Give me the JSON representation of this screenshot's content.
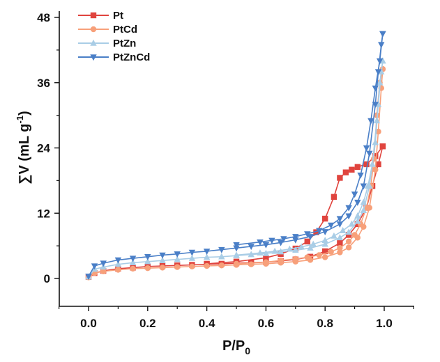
{
  "chart_data": {
    "type": "line",
    "title": "",
    "xlabel": "P/P",
    "xlabel_subscript": "0",
    "ylabel": "∑V (mL g",
    "ylabel_superscript": "-1",
    "ylabel_close": ")",
    "xlim": [
      -0.1,
      1.1
    ],
    "ylim": [
      -5,
      49
    ],
    "xticks": [
      0.0,
      0.2,
      0.4,
      0.6,
      0.8,
      1.0
    ],
    "xtick_labels": [
      "0.0",
      "0.2",
      "0.4",
      "0.6",
      "0.8",
      "1.0"
    ],
    "yticks": [
      0,
      12,
      24,
      36,
      48
    ],
    "ytick_labels": [
      "0",
      "12",
      "24",
      "36",
      "48"
    ],
    "grid": false,
    "legend_position": "top-left",
    "series": [
      {
        "name": "Pt",
        "color": "#e0443e",
        "marker": "square",
        "adsorption": {
          "x": [
            0.0,
            0.02,
            0.05,
            0.1,
            0.15,
            0.2,
            0.25,
            0.3,
            0.35,
            0.4,
            0.45,
            0.5,
            0.55,
            0.6,
            0.65,
            0.7,
            0.75,
            0.8,
            0.85,
            0.88,
            0.91,
            0.94,
            0.96,
            0.98,
            0.995
          ],
          "y": [
            0.3,
            1.0,
            1.4,
            1.8,
            2.0,
            2.2,
            2.3,
            2.4,
            2.5,
            2.6,
            2.7,
            2.8,
            2.9,
            3.0,
            3.2,
            3.5,
            4.0,
            5.0,
            6.5,
            8.0,
            10.0,
            13.0,
            17.0,
            21.0,
            24.3
          ]
        },
        "desorption": {
          "x": [
            0.995,
            0.97,
            0.94,
            0.91,
            0.89,
            0.87,
            0.85,
            0.83,
            0.8,
            0.77,
            0.74,
            0.7,
            0.65,
            0.6,
            0.5,
            0.4
          ],
          "y": [
            24.3,
            22.5,
            21.0,
            20.5,
            20.0,
            19.5,
            18.5,
            15.0,
            11.0,
            8.5,
            6.8,
            5.5,
            4.5,
            3.8,
            3.1,
            2.7
          ]
        }
      },
      {
        "name": "PtCd",
        "color": "#f7a07a",
        "marker": "circle",
        "adsorption": {
          "x": [
            0.0,
            0.02,
            0.05,
            0.1,
            0.15,
            0.2,
            0.25,
            0.3,
            0.35,
            0.4,
            0.45,
            0.5,
            0.55,
            0.6,
            0.65,
            0.7,
            0.75,
            0.8,
            0.85,
            0.88,
            0.91,
            0.93,
            0.95,
            0.97,
            0.98,
            0.99,
            0.995
          ],
          "y": [
            0.2,
            1.0,
            1.3,
            1.6,
            1.8,
            1.9,
            2.0,
            2.1,
            2.2,
            2.3,
            2.4,
            2.5,
            2.6,
            2.7,
            2.9,
            3.1,
            3.4,
            3.9,
            4.8,
            5.7,
            7.5,
            9.5,
            13.0,
            20.0,
            27.0,
            35.0,
            38.5
          ]
        },
        "desorption": {
          "x": [
            0.995,
            0.985,
            0.975,
            0.965,
            0.955,
            0.94,
            0.92,
            0.9,
            0.88,
            0.85,
            0.82,
            0.78,
            0.74,
            0.7,
            0.65,
            0.6,
            0.5
          ],
          "y": [
            38.5,
            36.0,
            30.0,
            22.0,
            17.0,
            13.0,
            10.0,
            8.0,
            6.8,
            5.6,
            4.9,
            4.3,
            3.9,
            3.6,
            3.3,
            3.0,
            2.7
          ]
        }
      },
      {
        "name": "PtZn",
        "color": "#a9cde6",
        "marker": "triangle-up",
        "adsorption": {
          "x": [
            0.0,
            0.02,
            0.05,
            0.1,
            0.15,
            0.2,
            0.25,
            0.3,
            0.35,
            0.4,
            0.45,
            0.5,
            0.55,
            0.6,
            0.65,
            0.7,
            0.75,
            0.8,
            0.85,
            0.88,
            0.91,
            0.93,
            0.95,
            0.97,
            0.98,
            0.99,
            0.995
          ],
          "y": [
            0.3,
            1.7,
            2.1,
            2.6,
            2.9,
            3.1,
            3.3,
            3.5,
            3.7,
            3.9,
            4.0,
            4.2,
            4.4,
            4.6,
            4.9,
            5.2,
            5.6,
            6.3,
            7.5,
            8.5,
            10.5,
            12.5,
            17.0,
            25.0,
            32.0,
            38.0,
            40.0
          ]
        },
        "desorption": {
          "x": [
            0.995,
            0.985,
            0.975,
            0.96,
            0.945,
            0.93,
            0.91,
            0.89,
            0.86,
            0.83,
            0.8,
            0.76,
            0.72,
            0.68,
            0.63,
            0.58,
            0.5
          ],
          "y": [
            40.0,
            36.0,
            29.0,
            21.0,
            17.0,
            14.0,
            11.5,
            10.0,
            8.8,
            7.8,
            7.0,
            6.3,
            5.8,
            5.4,
            5.0,
            4.7,
            4.3
          ]
        }
      },
      {
        "name": "PtZnCd",
        "color": "#4a7fc7",
        "marker": "triangle-down",
        "adsorption": {
          "x": [
            0.0,
            0.02,
            0.05,
            0.1,
            0.15,
            0.2,
            0.25,
            0.3,
            0.35,
            0.4,
            0.45,
            0.5,
            0.55,
            0.6,
            0.65,
            0.7,
            0.75,
            0.8,
            0.85,
            0.88,
            0.91,
            0.93,
            0.95,
            0.97,
            0.98,
            0.99,
            0.995
          ],
          "y": [
            0.4,
            2.3,
            2.8,
            3.4,
            3.7,
            4.0,
            4.3,
            4.5,
            4.8,
            5.0,
            5.3,
            5.6,
            5.9,
            6.2,
            6.6,
            7.1,
            7.7,
            8.6,
            10.0,
            11.5,
            14.0,
            17.0,
            23.0,
            32.0,
            38.0,
            43.0,
            45.0
          ]
        },
        "desorption": {
          "x": [
            0.995,
            0.985,
            0.97,
            0.955,
            0.94,
            0.92,
            0.9,
            0.88,
            0.85,
            0.82,
            0.78,
            0.74,
            0.7,
            0.66,
            0.62,
            0.58,
            0.5
          ],
          "y": [
            45.0,
            40.0,
            35.0,
            29.0,
            24.0,
            19.0,
            15.5,
            13.0,
            11.0,
            9.8,
            8.8,
            8.2,
            7.7,
            7.3,
            7.0,
            6.7,
            6.2
          ]
        }
      }
    ]
  }
}
